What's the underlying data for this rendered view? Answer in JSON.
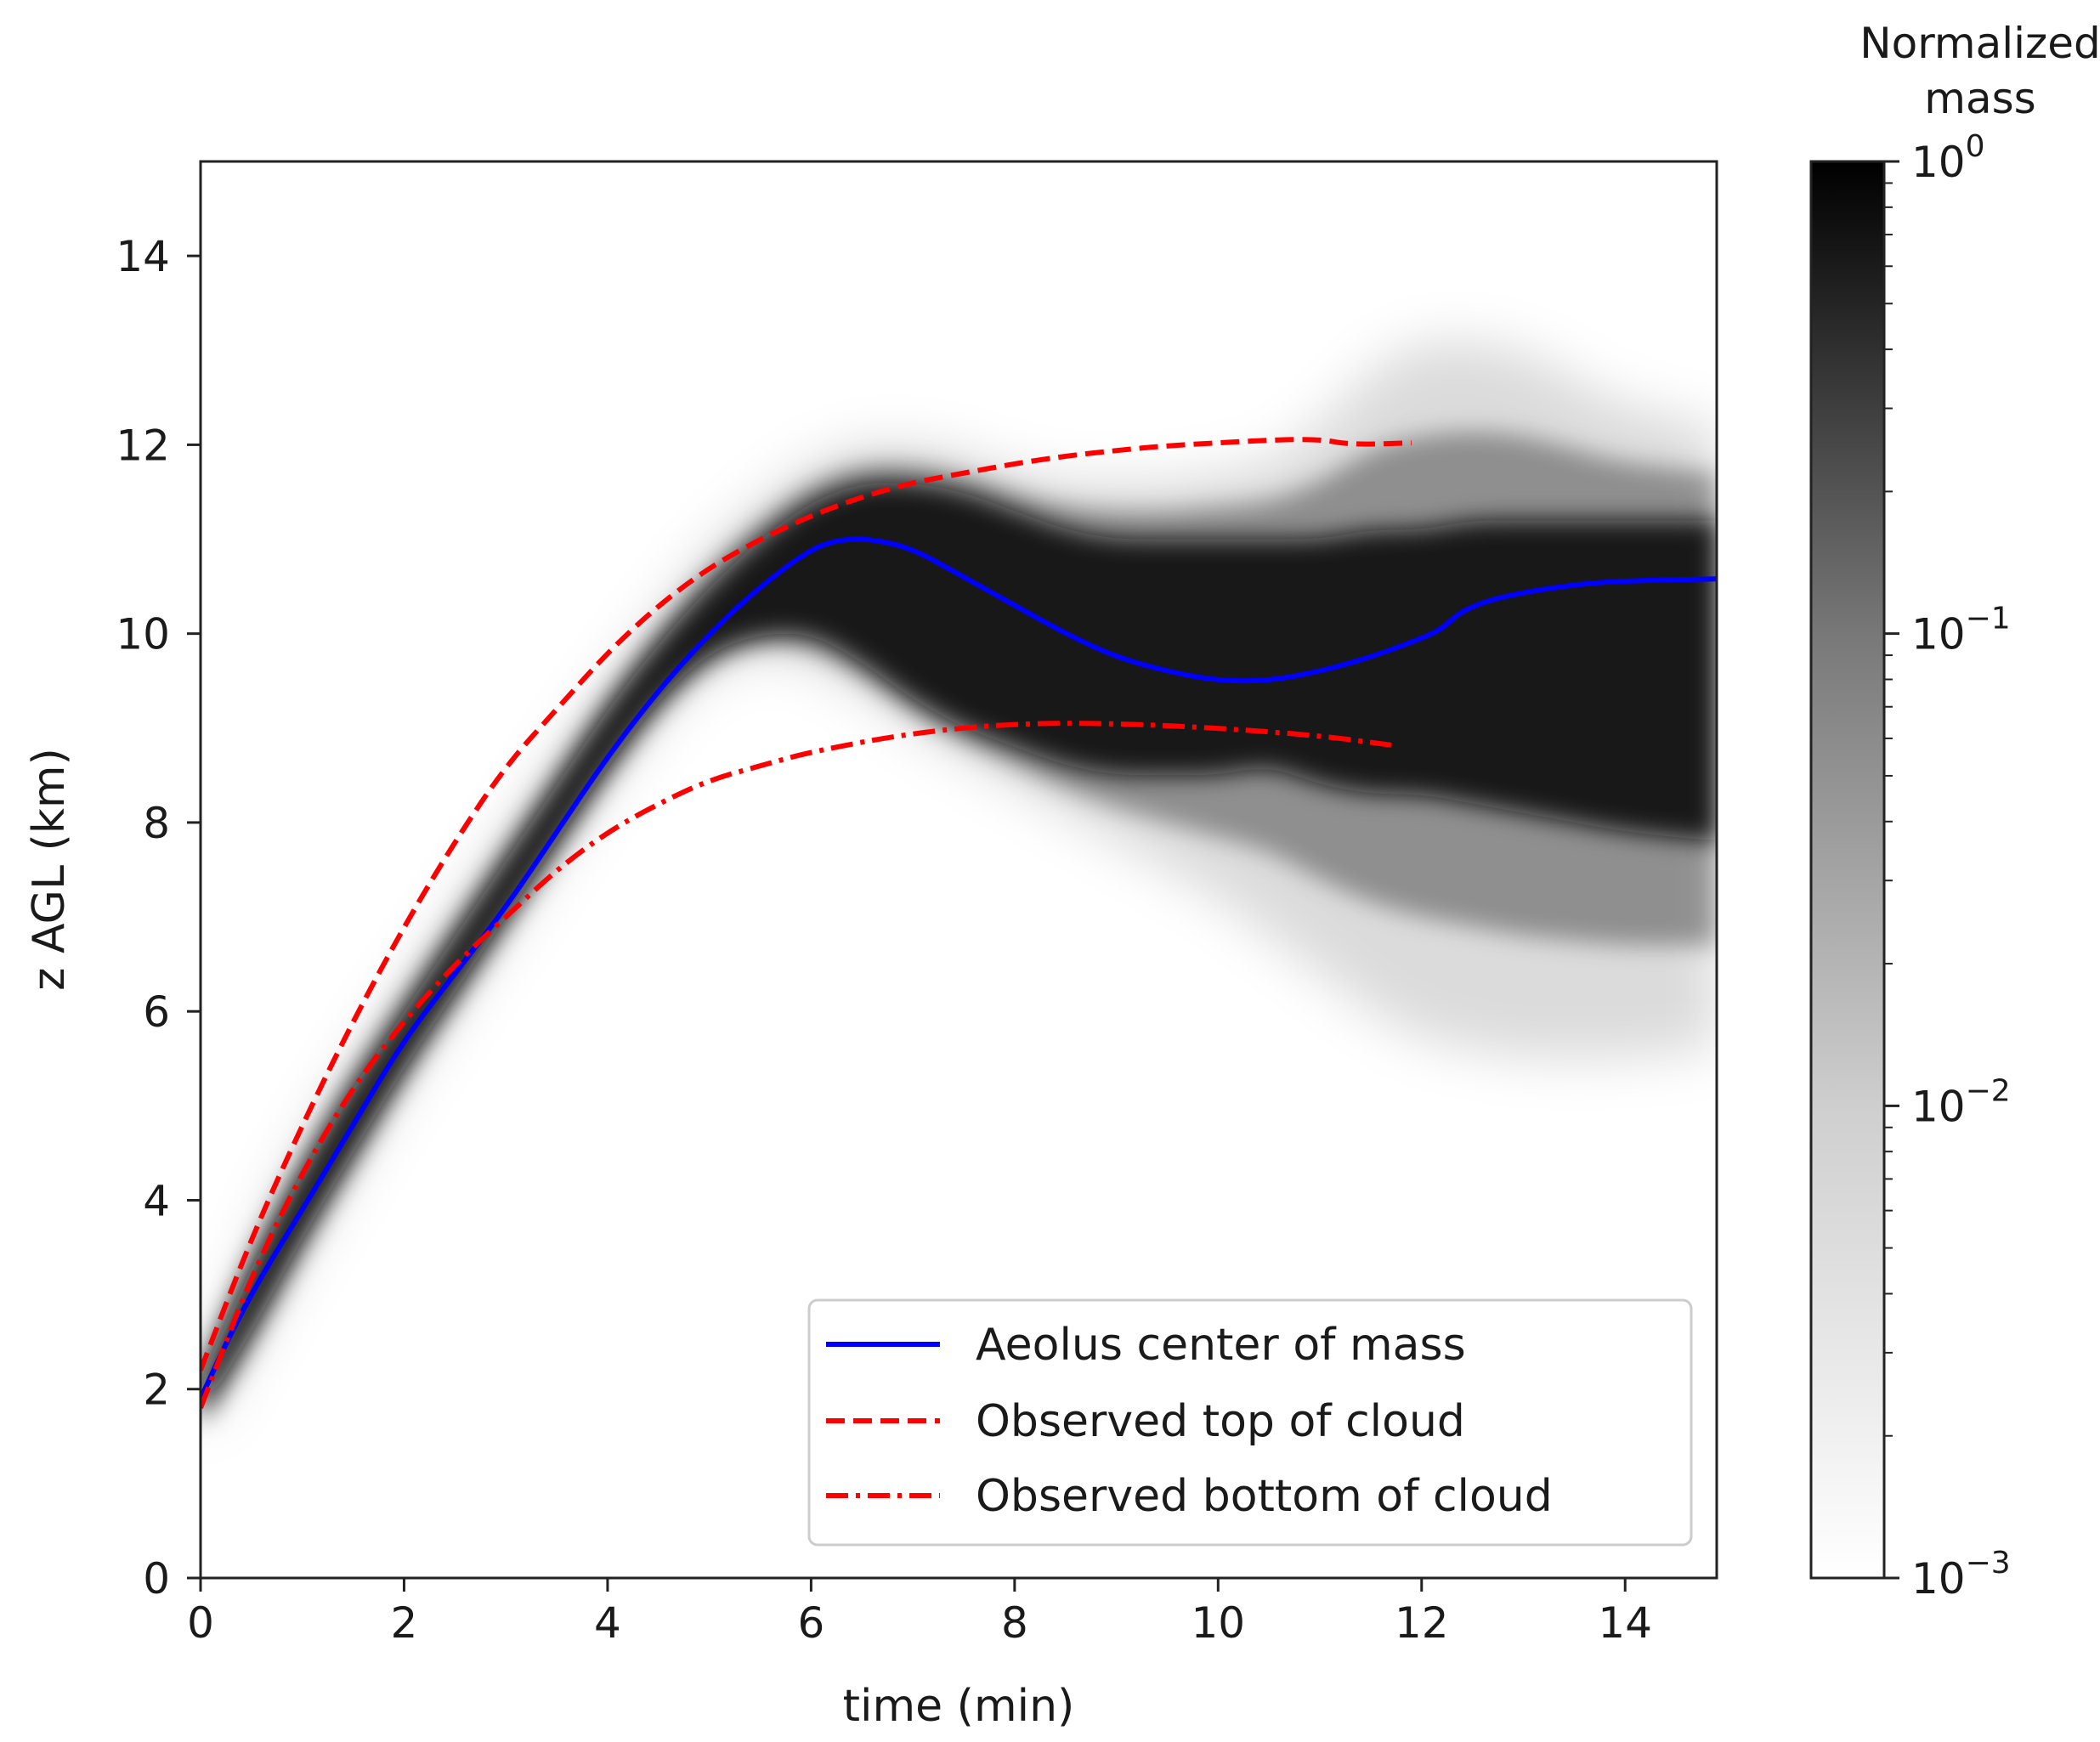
{
  "chart_data": {
    "type": "line",
    "xlabel": "time (min)",
    "ylabel": "z AGL (km)",
    "xlim": [
      0,
      14.9
    ],
    "ylim": [
      0,
      15
    ],
    "xticks": [
      0,
      2,
      4,
      6,
      8,
      10,
      12,
      14
    ],
    "yticks": [
      0,
      2,
      4,
      6,
      8,
      10,
      12,
      14
    ],
    "colorbar": {
      "title_line1": "Normalized",
      "title_line2": "mass",
      "scale": "log",
      "range": [
        0.001,
        1
      ],
      "tick_labels": [
        {
          "value": 1,
          "base": "10",
          "exp": "0"
        },
        {
          "value": 0.1,
          "base": "10",
          "exp": "−1"
        },
        {
          "value": 0.01,
          "base": "10",
          "exp": "−2"
        },
        {
          "value": 0.001,
          "base": "10",
          "exp": "−3"
        }
      ],
      "colormap": "gray_r"
    },
    "density_band": {
      "description_key": "mass distribution",
      "time": [
        0,
        0.5,
        1,
        1.5,
        2,
        2.5,
        3,
        3.5,
        4,
        4.5,
        5,
        5.5,
        6,
        6.5,
        7,
        7.5,
        8,
        8.5,
        9,
        9.5,
        10,
        10.5,
        11,
        11.5,
        12,
        12.5,
        13,
        13.5,
        14,
        14.9
      ],
      "core_upper": [
        2.1,
        3.3,
        4.3,
        5.2,
        6.0,
        6.8,
        7.6,
        8.4,
        9.2,
        9.9,
        10.5,
        11.0,
        11.4,
        11.6,
        11.6,
        11.5,
        11.3,
        11.1,
        11.0,
        11.0,
        11.0,
        11.0,
        11.0,
        11.1,
        11.1,
        11.2,
        11.2,
        11.2,
        11.2,
        11.2
      ],
      "core_lower": [
        1.7,
        2.6,
        3.6,
        4.5,
        5.4,
        6.2,
        7.0,
        7.8,
        8.6,
        9.3,
        9.8,
        10.0,
        10.0,
        9.7,
        9.3,
        9.0,
        8.8,
        8.6,
        8.5,
        8.5,
        8.5,
        8.6,
        8.4,
        8.3,
        8.3,
        8.2,
        8.1,
        8.0,
        7.9,
        7.8
      ],
      "halo_upper": [
        2.2,
        3.5,
        4.6,
        5.5,
        6.3,
        7.1,
        7.9,
        8.7,
        9.5,
        10.2,
        10.9,
        11.4,
        11.8,
        12.0,
        12.0,
        11.9,
        11.7,
        11.6,
        11.6,
        11.6,
        11.7,
        11.8,
        12.2,
        12.8,
        13.1,
        13.1,
        13.0,
        12.7,
        12.4,
        12.2
      ],
      "halo_lower": [
        1.5,
        2.4,
        3.4,
        4.3,
        5.2,
        6.0,
        6.8,
        7.6,
        8.4,
        9.1,
        9.6,
        9.8,
        9.7,
        9.4,
        9.0,
        8.7,
        8.4,
        8.1,
        7.8,
        7.5,
        7.2,
        6.8,
        6.4,
        6.0,
        5.7,
        5.6,
        5.5,
        5.5,
        5.5,
        5.6
      ]
    },
    "series": [
      {
        "name": "Aeolus center of mass",
        "color": "#0000ff",
        "style": "solid",
        "x": [
          0,
          0.3,
          0.6,
          1.0,
          1.5,
          2.0,
          2.5,
          3.0,
          3.5,
          4.0,
          4.5,
          5.0,
          5.5,
          6.0,
          6.3,
          6.6,
          7.0,
          7.5,
          8.0,
          8.5,
          9.0,
          9.5,
          10.0,
          10.5,
          11.0,
          11.5,
          12.0,
          12.2,
          12.4,
          12.8,
          13.5,
          14.0,
          14.9
        ],
        "y": [
          1.9,
          2.6,
          3.2,
          3.9,
          4.8,
          5.7,
          6.4,
          7.1,
          7.9,
          8.7,
          9.4,
          10.0,
          10.5,
          10.9,
          11.0,
          11.0,
          10.9,
          10.6,
          10.3,
          10.0,
          9.75,
          9.6,
          9.5,
          9.5,
          9.6,
          9.75,
          9.95,
          10.05,
          10.25,
          10.4,
          10.52,
          10.56,
          10.58
        ]
      },
      {
        "name": "Observed top of cloud",
        "color": "#ff0000",
        "style": "dashed",
        "x": [
          0,
          0.5,
          1.0,
          1.5,
          2.0,
          2.5,
          3.0,
          3.5,
          4.0,
          4.5,
          5.0,
          5.5,
          6.0,
          6.5,
          7.0,
          7.5,
          8.0,
          8.5,
          9.0,
          9.5,
          10.0,
          10.5,
          11.0,
          11.3,
          11.9
        ],
        "y": [
          2.2,
          3.6,
          4.8,
          5.9,
          6.9,
          7.8,
          8.6,
          9.2,
          9.8,
          10.3,
          10.7,
          11.0,
          11.25,
          11.45,
          11.6,
          11.7,
          11.8,
          11.88,
          11.94,
          11.99,
          12.02,
          12.05,
          12.06,
          12.0,
          12.02
        ]
      },
      {
        "name": "Observed bottom of cloud",
        "color": "#ff0000",
        "style": "dashdot",
        "x": [
          0,
          0.5,
          1.0,
          1.5,
          2.0,
          2.5,
          3.0,
          3.5,
          4.0,
          4.5,
          5.0,
          5.5,
          6.0,
          7.0,
          8.0,
          9.0,
          10.0,
          11.0,
          11.7
        ],
        "y": [
          1.8,
          3.2,
          4.3,
          5.2,
          5.9,
          6.5,
          7.0,
          7.5,
          7.9,
          8.2,
          8.45,
          8.6,
          8.75,
          8.95,
          9.05,
          9.05,
          9.0,
          8.92,
          8.82
        ]
      }
    ],
    "legend": {
      "placement": "lower right",
      "entries": [
        "Aeolus center of mass",
        "Observed top of cloud",
        "Observed bottom of cloud"
      ]
    }
  }
}
